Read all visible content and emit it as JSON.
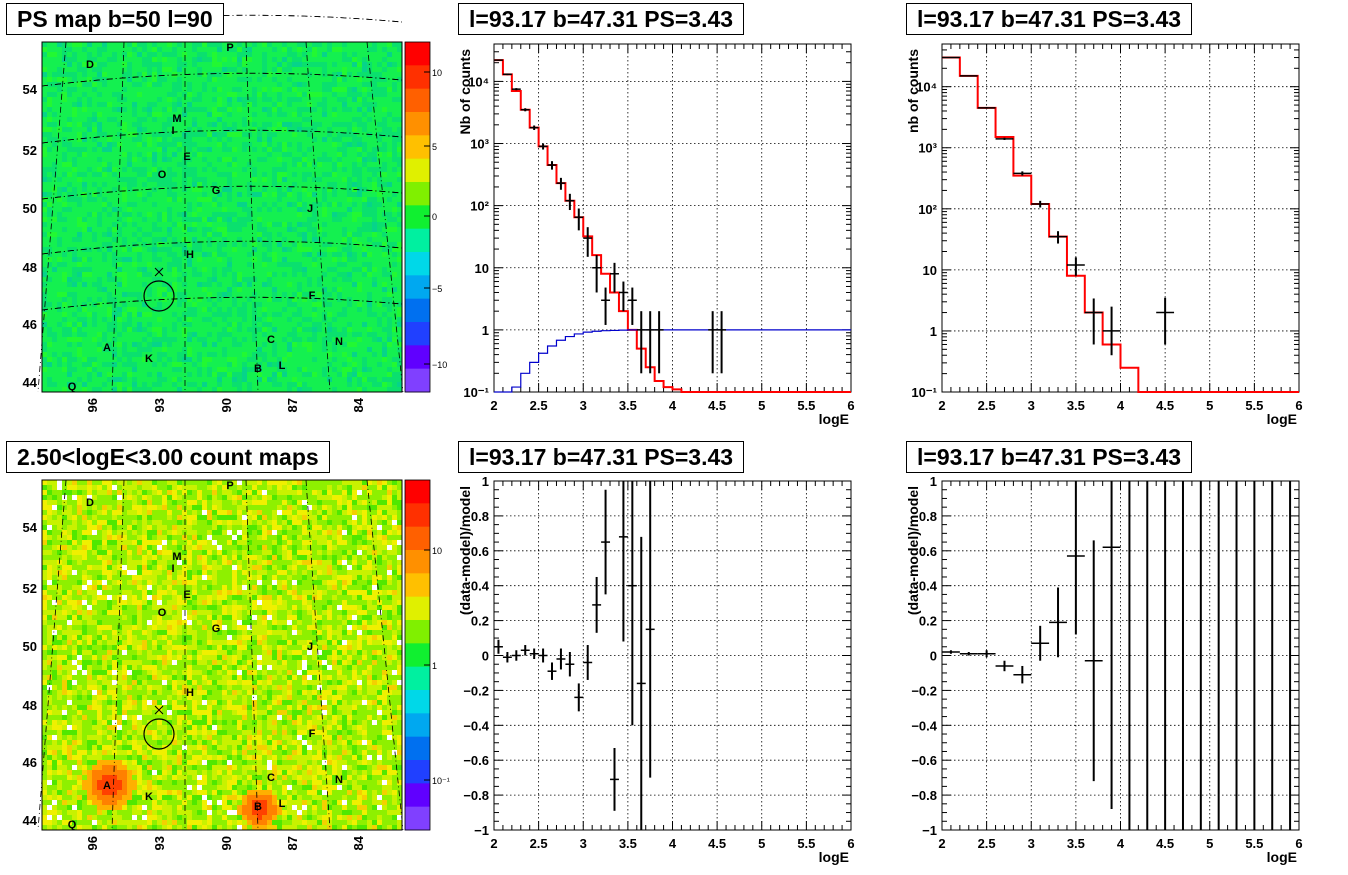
{
  "panels": {
    "map_top": {
      "title": "PS map b=50 l=90",
      "x_ticks": [
        "96",
        "93",
        "90",
        "87",
        "84"
      ],
      "y_ticks": [
        "44",
        "46",
        "48",
        "50",
        "52",
        "54"
      ],
      "colorbar_ticks": [
        "10",
        "5",
        "0",
        "−5",
        "−10"
      ],
      "source_labels": [
        "D",
        "P",
        "M",
        "I",
        "E",
        "O",
        "G",
        "J",
        "H",
        "F",
        "C",
        "N",
        "A",
        "K",
        "B",
        "L",
        "Q"
      ]
    },
    "map_bottom": {
      "title": "2.50<logE<3.00 count maps",
      "x_ticks": [
        "96",
        "93",
        "90",
        "87",
        "84"
      ],
      "y_ticks": [
        "44",
        "46",
        "48",
        "50",
        "52",
        "54"
      ],
      "colorbar_ticks": [
        "10",
        "1",
        "10⁻¹"
      ],
      "source_labels": [
        "D",
        "P",
        "M",
        "I",
        "E",
        "O",
        "G",
        "J",
        "H",
        "F",
        "C",
        "N",
        "A",
        "K",
        "B",
        "L",
        "Q"
      ]
    }
  },
  "chart_data": [
    {
      "id": "spectrum_left",
      "type": "step",
      "title": "l=93.17 b=47.31 PS=3.43",
      "xlabel": "logE",
      "ylabel": "Nb of counts",
      "xlim": [
        2,
        6
      ],
      "ylim": [
        0.1,
        40000
      ],
      "yscale": "log",
      "grid": true,
      "x_tick_labels": [
        "2",
        "2.5",
        "3",
        "3.5",
        "4",
        "4.5",
        "5",
        "5.5",
        "6"
      ],
      "y_tick_labels": [
        "10⁻¹",
        "1",
        "10",
        "10²",
        "10³",
        "10⁴"
      ],
      "series": [
        {
          "color": "#ff0000",
          "style": "step",
          "bin_width": 0.1,
          "x": [
            2.0,
            2.1,
            2.2,
            2.3,
            2.4,
            2.5,
            2.6,
            2.7,
            2.8,
            2.9,
            3.0,
            3.1,
            3.2,
            3.3,
            3.4,
            3.5,
            3.6,
            3.7,
            3.8,
            3.9,
            4.0,
            4.1,
            4.2,
            4.3,
            4.4,
            4.5,
            4.6,
            4.7,
            4.8,
            4.9,
            5.0,
            5.1,
            5.2,
            5.3,
            5.4,
            5.5,
            5.6,
            5.7,
            5.8,
            5.9
          ],
          "values": [
            22000,
            13000,
            7000,
            3500,
            1800,
            900,
            450,
            230,
            120,
            65,
            32,
            16,
            8,
            4,
            2,
            1,
            0.5,
            0.25,
            0.15,
            0.12,
            0.11,
            0.1,
            0.1,
            0.1,
            0.1,
            0.1,
            0.1,
            0.1,
            0.1,
            0.1,
            0.1,
            0.1,
            0.1,
            0.1,
            0.1,
            0.1,
            0.1,
            0.1,
            0.1,
            0.1
          ]
        },
        {
          "color": "#0000cc",
          "style": "step",
          "bin_width": 0.1,
          "x": [
            2.0,
            2.1,
            2.2,
            2.3,
            2.4,
            2.5,
            2.6,
            2.7,
            2.8,
            2.9,
            3.0,
            3.1,
            3.2,
            3.3,
            3.4,
            3.5,
            3.6,
            3.7,
            3.8,
            3.9,
            4.0,
            4.1,
            4.2,
            4.3,
            4.4,
            4.5,
            4.6,
            4.7,
            4.8,
            4.9,
            5.0,
            5.1,
            5.2,
            5.3,
            5.4,
            5.5,
            5.6,
            5.7,
            5.8,
            5.9
          ],
          "values": [
            0.05,
            0.07,
            0.12,
            0.2,
            0.3,
            0.42,
            0.55,
            0.68,
            0.78,
            0.86,
            0.92,
            0.95,
            0.97,
            0.98,
            0.99,
            1,
            1,
            1,
            1,
            1,
            1,
            1,
            1,
            1,
            1,
            1,
            1,
            1,
            1,
            1,
            1,
            1,
            1,
            1,
            1,
            1,
            1,
            1,
            1,
            1
          ]
        },
        {
          "color": "#000000",
          "style": "errorbar",
          "xerr": 0.05,
          "x": [
            2.05,
            2.15,
            2.25,
            2.35,
            2.45,
            2.55,
            2.65,
            2.75,
            2.85,
            2.95,
            3.05,
            3.15,
            3.25,
            3.35,
            3.45,
            3.55,
            3.65,
            3.75,
            3.85,
            4.45,
            4.55
          ],
          "values": [
            22000,
            13000,
            7500,
            3500,
            1800,
            900,
            450,
            230,
            120,
            65,
            30,
            10,
            3,
            8,
            4,
            3,
            1,
            1,
            1,
            1,
            1
          ],
          "err_low": [
            500,
            400,
            300,
            200,
            150,
            100,
            70,
            50,
            35,
            25,
            15,
            6,
            1.8,
            4,
            2,
            1.8,
            0.8,
            0.8,
            0.8,
            0.8,
            0.8
          ],
          "err_high": [
            500,
            400,
            300,
            200,
            150,
            100,
            70,
            50,
            35,
            25,
            15,
            6,
            1.8,
            4,
            2,
            1.8,
            1,
            1,
            1,
            1,
            1
          ]
        }
      ]
    },
    {
      "id": "spectrum_right",
      "type": "step",
      "title": "l=93.17 b=47.31 PS=3.43",
      "xlabel": "logE",
      "ylabel": "nb of counts",
      "xlim": [
        2,
        6
      ],
      "ylim": [
        0.1,
        50000
      ],
      "yscale": "log",
      "grid": true,
      "x_tick_labels": [
        "2",
        "2.5",
        "3",
        "3.5",
        "4",
        "4.5",
        "5",
        "5.5",
        "6"
      ],
      "y_tick_labels": [
        "10⁻¹",
        "1",
        "10",
        "10²",
        "10³",
        "10⁴"
      ],
      "series": [
        {
          "color": "#ff0000",
          "style": "step",
          "bin_width": 0.2,
          "x": [
            2.0,
            2.2,
            2.4,
            2.6,
            2.8,
            3.0,
            3.2,
            3.4,
            3.6,
            3.8,
            4.0,
            4.2,
            4.4,
            4.6,
            4.8,
            5.0,
            5.2,
            5.4,
            5.6,
            5.8
          ],
          "values": [
            30000,
            15000,
            4500,
            1500,
            350,
            120,
            35,
            8,
            2,
            0.6,
            0.25,
            0.1,
            0.1,
            0.1,
            0.1,
            0.1,
            0.1,
            0.1,
            0.1,
            0.1
          ]
        },
        {
          "color": "#000000",
          "style": "errorbar",
          "xerr": 0.1,
          "x": [
            2.1,
            2.3,
            2.5,
            2.7,
            2.9,
            3.1,
            3.3,
            3.5,
            3.7,
            3.9,
            4.5
          ],
          "values": [
            30000,
            15000,
            4500,
            1400,
            380,
            120,
            35,
            12,
            2,
            1,
            2
          ],
          "err_low": [
            300,
            200,
            120,
            60,
            30,
            15,
            8,
            4,
            1.4,
            0.6,
            1.4
          ],
          "err_high": [
            300,
            200,
            120,
            60,
            30,
            15,
            8,
            4,
            1.4,
            1.5,
            1.5
          ]
        }
      ]
    },
    {
      "id": "residual_left",
      "type": "scatter",
      "title": "l=93.17 b=47.31 PS=3.43",
      "xlabel": "logE",
      "ylabel": "(data-model)/model",
      "xlim": [
        2,
        6
      ],
      "ylim": [
        -1,
        1
      ],
      "grid": true,
      "x_tick_labels": [
        "2",
        "2.5",
        "3",
        "3.5",
        "4",
        "4.5",
        "5",
        "5.5",
        "6"
      ],
      "y_tick_labels": [
        "−1",
        "−0.8",
        "−0.6",
        "−0.4",
        "−0.2",
        "0",
        "0.2",
        "0.4",
        "0.6",
        "0.8",
        "1"
      ],
      "series": [
        {
          "color": "#000000",
          "style": "errorbar",
          "xerr": 0.05,
          "x": [
            2.05,
            2.15,
            2.25,
            2.35,
            2.45,
            2.55,
            2.65,
            2.75,
            2.85,
            2.95,
            3.05,
            3.15,
            3.25,
            3.35,
            3.45,
            3.55,
            3.65,
            3.75
          ],
          "values": [
            0.05,
            -0.01,
            0.0,
            0.03,
            0.01,
            0.0,
            -0.09,
            -0.02,
            -0.05,
            -0.24,
            -0.04,
            0.29,
            0.65,
            -0.71,
            0.68,
            0.4,
            -0.16,
            0.15
          ],
          "err_low": [
            0.04,
            0.03,
            0.03,
            0.03,
            0.03,
            0.04,
            0.05,
            0.06,
            0.07,
            0.08,
            0.1,
            0.16,
            0.3,
            0.18,
            0.6,
            0.8,
            0.84,
            0.85
          ],
          "err_high": [
            0.04,
            0.03,
            0.03,
            0.03,
            0.03,
            0.04,
            0.05,
            0.06,
            0.07,
            0.08,
            0.1,
            0.16,
            0.3,
            0.18,
            0.6,
            0.8,
            0.84,
            0.85
          ]
        }
      ]
    },
    {
      "id": "residual_right",
      "type": "scatter",
      "title": "l=93.17 b=47.31 PS=3.43",
      "xlabel": "logE",
      "ylabel": "(data-model)/model",
      "xlim": [
        2,
        6
      ],
      "ylim": [
        -1,
        1
      ],
      "grid": true,
      "x_tick_labels": [
        "2",
        "2.5",
        "3",
        "3.5",
        "4",
        "4.5",
        "5",
        "5.5",
        "6"
      ],
      "y_tick_labels": [
        "−1",
        "−0.8",
        "−0.6",
        "−0.4",
        "−0.2",
        "0",
        "0.2",
        "0.4",
        "0.6",
        "0.8",
        "1"
      ],
      "series": [
        {
          "color": "#000000",
          "style": "errorbar",
          "xerr": 0.1,
          "x": [
            2.1,
            2.3,
            2.5,
            2.7,
            2.9,
            3.1,
            3.3,
            3.5,
            3.7,
            3.9
          ],
          "values": [
            0.02,
            0.01,
            0.01,
            -0.06,
            -0.11,
            0.07,
            0.19,
            0.57,
            -0.03,
            0.62
          ],
          "err_low": [
            0.01,
            0.01,
            0.02,
            0.03,
            0.05,
            0.1,
            0.2,
            0.45,
            0.69,
            1.5
          ],
          "err_high": [
            0.01,
            0.01,
            0.02,
            0.03,
            0.05,
            0.1,
            0.2,
            0.45,
            0.69,
            1.5
          ]
        },
        {
          "color": "#000000",
          "style": "vline",
          "x": [
            4.1,
            4.3,
            4.5,
            4.7,
            4.9,
            5.1,
            5.3,
            5.5,
            5.7,
            5.9
          ]
        }
      ]
    }
  ]
}
